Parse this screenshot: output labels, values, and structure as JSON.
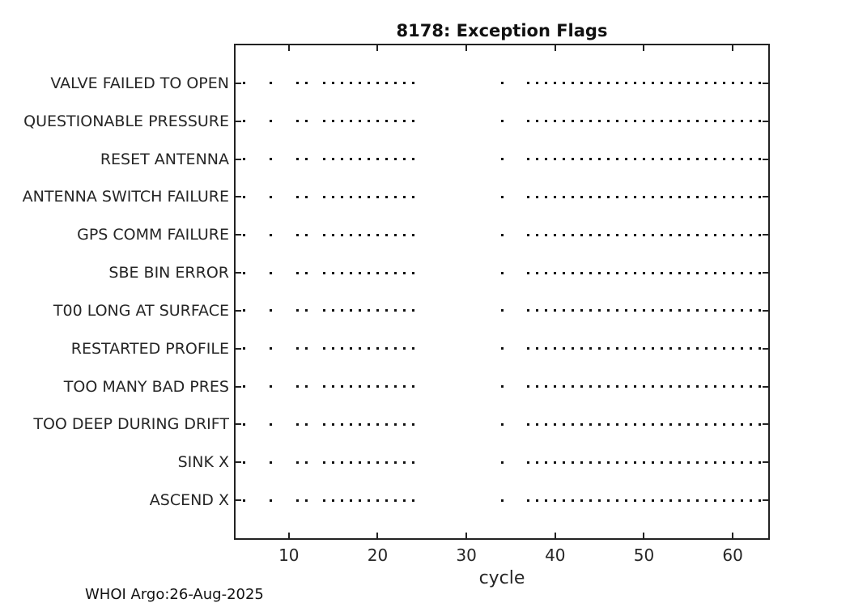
{
  "title": "8178: Exception Flags",
  "x_axis_label": "cycle",
  "footer": "WHOI Argo:26-Aug-2025",
  "chart_data": {
    "type": "scatter",
    "title": "8178: Exception Flags",
    "xlabel": "cycle",
    "xlim": [
      4,
      64
    ],
    "x_ticks": [
      10,
      20,
      30,
      40,
      50,
      60
    ],
    "grid": false,
    "marker": "dot",
    "marker_color": "#111111",
    "rows": [
      "VALVE FAILED TO OPEN",
      "QUESTIONABLE PRESSURE",
      "RESET ANTENNA",
      "ANTENNA SWITCH FAILURE",
      "GPS COMM FAILURE",
      "SBE BIN ERROR",
      "T00 LONG AT SURFACE",
      "RESTARTED PROFILE",
      "TOO MANY BAD PRES",
      "TOO DEEP DURING DRIFT",
      "SINK X",
      "ASCEND X"
    ],
    "all_rows_share_pattern": true,
    "dot_cycles": [
      5,
      8,
      11,
      12,
      14,
      15,
      16,
      17,
      18,
      19,
      20,
      21,
      22,
      23,
      24,
      34,
      37,
      38,
      39,
      40,
      41,
      42,
      43,
      44,
      45,
      46,
      47,
      48,
      49,
      50,
      51,
      52,
      53,
      54,
      55,
      56,
      57,
      58,
      59,
      60,
      61,
      62,
      63
    ]
  }
}
